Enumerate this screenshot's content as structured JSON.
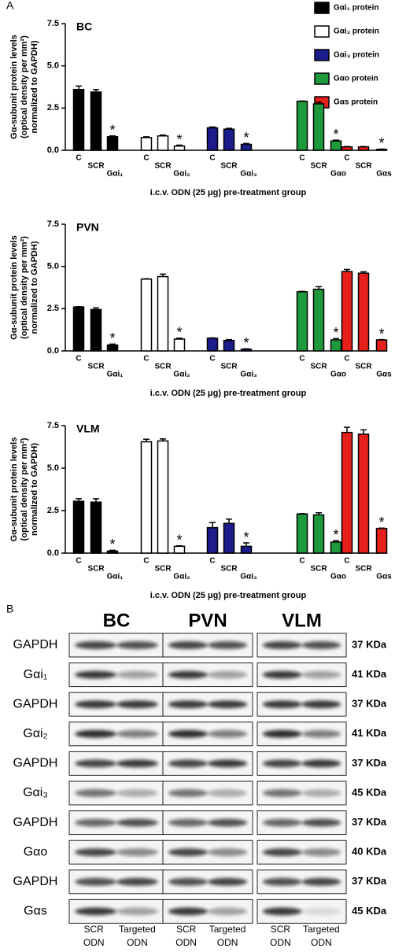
{
  "panel_a": {
    "label": "A"
  },
  "legend": [
    {
      "name": "Gαi₁ protein",
      "color": "#000000"
    },
    {
      "name": "Gαi₂ protein",
      "color": "#ffffff"
    },
    {
      "name": "Gαi₃ protein",
      "color": "#1c1c8c"
    },
    {
      "name": "Gαo protein",
      "color": "#1e9a3c"
    },
    {
      "name": "Gαs protein",
      "color": "#e8201c"
    }
  ],
  "chart_data": [
    {
      "type": "bar",
      "title": "BC",
      "y_label": [
        "Gα-subunit protein levels",
        "(optical density per mm²)",
        "normalized to GAPDH)"
      ],
      "x_label": "i.c.v. ODN (25 μg) pre-treatment group",
      "ylim": [
        0,
        7.5
      ],
      "yticks": [
        {
          "value": 0,
          "label": "0.0"
        },
        2.5,
        {
          "value": 5,
          "label": "5.0"
        },
        7.5
      ],
      "series": [
        {
          "color": "#000000",
          "categories": [
            "C",
            "SCR",
            "Gαi₁"
          ],
          "values": [
            3.6,
            3.45,
            0.8
          ],
          "errors": [
            0.2,
            0.15,
            0.05
          ],
          "significance": [
            null,
            null,
            "*"
          ]
        },
        {
          "color": "#ffffff",
          "categories": [
            "C",
            "SCR",
            "Gαi₂"
          ],
          "values": [
            0.75,
            0.85,
            0.25
          ],
          "errors": [
            0.05,
            0.05,
            0.05
          ],
          "significance": [
            null,
            null,
            "*"
          ]
        },
        {
          "color": "#1c1c8c",
          "categories": [
            "C",
            "SCR",
            "Gαi₃"
          ],
          "values": [
            1.33,
            1.25,
            0.35
          ],
          "errors": [
            0.05,
            0.05,
            0.05
          ],
          "significance": [
            null,
            null,
            "*"
          ]
        },
        {
          "color": "#1e9a3c",
          "categories": [
            "C",
            "SCR",
            "Gαo"
          ],
          "values": [
            2.9,
            2.75,
            0.55
          ],
          "errors": [
            0.02,
            0.1,
            0.05
          ],
          "significance": [
            null,
            null,
            "*"
          ]
        },
        {
          "color": "#e8201c",
          "categories": [
            "C",
            "SCR",
            "Gαs"
          ],
          "values": [
            0.2,
            0.2,
            0.05
          ],
          "errors": [
            0.02,
            0.02,
            0.02
          ],
          "significance": [
            null,
            null,
            "*"
          ]
        }
      ]
    },
    {
      "type": "bar",
      "title": "PVN",
      "y_label": [
        "Gα-subunit protein levels",
        "(optical density per mm²)",
        "normalized to GAPDH)"
      ],
      "x_label": "i.c.v. ODN (25 μg) pre-treatment group",
      "ylim": [
        0,
        7.5
      ],
      "yticks": [
        {
          "value": 0,
          "label": "0.0"
        },
        2.5,
        {
          "value": 5,
          "label": "5.0"
        },
        7.5
      ],
      "series": [
        {
          "color": "#000000",
          "categories": [
            "C",
            "SCR",
            "Gαi₁"
          ],
          "values": [
            2.6,
            2.45,
            0.35
          ],
          "errors": [
            0.02,
            0.1,
            0.05
          ],
          "significance": [
            null,
            null,
            "*"
          ]
        },
        {
          "color": "#ffffff",
          "categories": [
            "C",
            "SCR",
            "Gαi₂"
          ],
          "values": [
            4.25,
            4.4,
            0.7
          ],
          "errors": [
            0.02,
            0.15,
            0.05
          ],
          "significance": [
            null,
            null,
            "*"
          ]
        },
        {
          "color": "#1c1c8c",
          "categories": [
            "C",
            "SCR",
            "Gαi₃"
          ],
          "values": [
            0.75,
            0.62,
            0.1
          ],
          "errors": [
            0.02,
            0.05,
            0.02
          ],
          "significance": [
            null,
            null,
            "*"
          ]
        },
        {
          "color": "#1e9a3c",
          "categories": [
            "C",
            "SCR",
            "Gαo"
          ],
          "values": [
            3.5,
            3.65,
            0.65
          ],
          "errors": [
            0.02,
            0.15,
            0.08
          ],
          "significance": [
            null,
            null,
            "*"
          ]
        },
        {
          "color": "#e8201c",
          "categories": [
            "C",
            "SCR",
            "Gαs"
          ],
          "values": [
            4.7,
            4.6,
            0.65
          ],
          "errors": [
            0.12,
            0.08,
            0.02
          ],
          "significance": [
            null,
            null,
            "*"
          ]
        }
      ]
    },
    {
      "type": "bar",
      "title": "VLM",
      "y_label": [
        "Gα-subunit protein levels",
        "(optical density per mm²)",
        "normalized to GAPDH)"
      ],
      "x_label": "i.c.v. ODN (25 μg) pre-treatment group",
      "ylim": [
        0,
        7.5
      ],
      "yticks": [
        {
          "value": 0,
          "label": "0.0"
        },
        2.5,
        {
          "value": 5,
          "label": "5.0"
        },
        7.5
      ],
      "series": [
        {
          "color": "#000000",
          "categories": [
            "C",
            "SCR",
            "Gαi₁"
          ],
          "values": [
            3.05,
            3.0,
            0.12
          ],
          "errors": [
            0.15,
            0.2,
            0.05
          ],
          "significance": [
            null,
            null,
            "*"
          ]
        },
        {
          "color": "#ffffff",
          "categories": [
            "C",
            "SCR",
            "Gαi₂"
          ],
          "values": [
            6.55,
            6.6,
            0.4
          ],
          "errors": [
            0.15,
            0.12,
            0.03
          ],
          "significance": [
            null,
            null,
            "*"
          ]
        },
        {
          "color": "#1c1c8c",
          "categories": [
            "C",
            "SCR",
            "Gαi₃"
          ],
          "values": [
            1.5,
            1.75,
            0.4
          ],
          "errors": [
            0.3,
            0.25,
            0.2
          ],
          "significance": [
            null,
            null,
            "*"
          ]
        },
        {
          "color": "#1e9a3c",
          "categories": [
            "C",
            "SCR",
            "Gαo"
          ],
          "values": [
            2.3,
            2.25,
            0.65
          ],
          "errors": [
            0.02,
            0.12,
            0.08
          ],
          "significance": [
            null,
            null,
            "*"
          ]
        },
        {
          "color": "#e8201c",
          "categories": [
            "C",
            "SCR",
            "Gαs"
          ],
          "values": [
            7.1,
            7.0,
            1.45
          ],
          "errors": [
            0.3,
            0.25,
            0.02
          ],
          "significance": [
            null,
            null,
            "*"
          ]
        }
      ]
    }
  ],
  "panel_b": {
    "label": "B",
    "columns": [
      "BC",
      "PVN",
      "VLM"
    ],
    "rows": [
      {
        "protein": "GAPDH",
        "weight": "37 KDa"
      },
      {
        "protein": "Gαi₁",
        "weight": "41 KDa"
      },
      {
        "protein": "GAPDH",
        "weight": "37 KDa"
      },
      {
        "protein": "Gαi₂",
        "weight": "41 KDa"
      },
      {
        "protein": "GAPDH",
        "weight": "37 KDa"
      },
      {
        "protein": "Gαi₃",
        "weight": "45 KDa"
      },
      {
        "protein": "GAPDH",
        "weight": "37 KDa"
      },
      {
        "protein": "Gαo",
        "weight": "40 KDa"
      },
      {
        "protein": "GAPDH",
        "weight": "37 KDa"
      },
      {
        "protein": "Gαs",
        "weight": "45 KDa"
      }
    ],
    "lanes": [
      {
        "top": "SCR",
        "bottom": "ODN"
      },
      {
        "top": "Targeted",
        "bottom": "ODN"
      }
    ]
  }
}
